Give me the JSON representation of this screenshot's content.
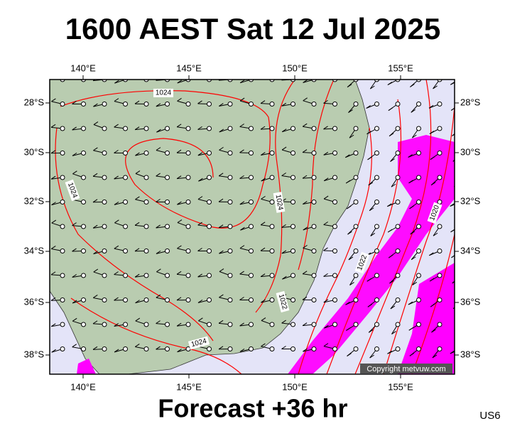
{
  "title": "1600 AEST Sat 12 Jul 2025",
  "footer": "Forecast +36 hr",
  "station": "US6",
  "copyright": "Copyright metvuw.com",
  "lon_labels": [
    "140°E",
    "145°E",
    "150°E",
    "155°E"
  ],
  "lat_labels": [
    "28°S",
    "30°S",
    "32°S",
    "34°S",
    "36°S",
    "38°S"
  ],
  "isobar_labels": [
    "1024",
    "1024",
    "1024",
    "1022",
    "1022",
    "1024",
    "1020"
  ]
}
